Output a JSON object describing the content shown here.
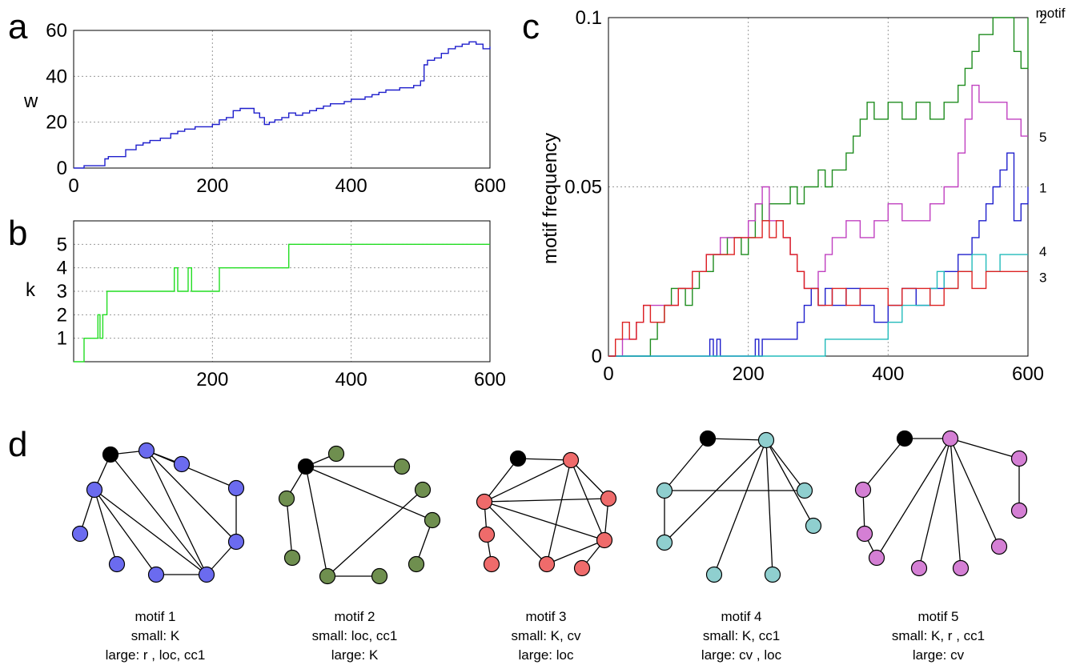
{
  "panel_labels": [
    "a",
    "b",
    "c",
    "d"
  ],
  "chart_data": [
    {
      "id": "a",
      "type": "line",
      "ylabel": "w",
      "xlim": [
        0,
        600
      ],
      "ylim": [
        0,
        60
      ],
      "xticks": [
        0,
        200,
        400,
        600
      ],
      "yticks": [
        0,
        20,
        40,
        60
      ],
      "grid": true,
      "series": [
        {
          "color": "#1f1fcc",
          "x": [
            0,
            15,
            30,
            45,
            50,
            60,
            75,
            90,
            100,
            110,
            125,
            140,
            150,
            160,
            175,
            185,
            200,
            210,
            220,
            230,
            240,
            250,
            260,
            268,
            275,
            282,
            290,
            300,
            310,
            320,
            330,
            340,
            350,
            360,
            370,
            380,
            390,
            400,
            410,
            420,
            430,
            440,
            450,
            460,
            470,
            480,
            490,
            500,
            505,
            510,
            520,
            530,
            540,
            550,
            560,
            570,
            580,
            590,
            600
          ],
          "y": [
            0,
            1,
            1,
            4,
            5,
            5,
            8,
            10,
            11,
            12,
            13,
            15,
            16,
            17,
            18,
            18,
            19,
            21,
            22,
            25,
            26,
            26,
            24,
            22,
            19,
            20,
            21,
            22,
            24,
            23,
            24,
            25,
            26,
            27,
            28,
            28,
            29,
            30,
            30,
            31,
            32,
            33,
            34,
            34,
            35,
            35,
            36,
            38,
            45,
            47,
            48,
            50,
            52,
            53,
            54,
            55,
            54,
            52,
            53
          ]
        }
      ]
    },
    {
      "id": "b",
      "type": "line",
      "ylabel": "k",
      "xlim": [
        0,
        600
      ],
      "ylim": [
        0,
        6
      ],
      "xticks": [
        200,
        400,
        600
      ],
      "yticks": [
        1,
        2,
        3,
        4,
        5
      ],
      "grid": true,
      "series": [
        {
          "color": "#22dd22",
          "x": [
            0,
            15,
            15,
            35,
            35,
            38,
            38,
            42,
            42,
            48,
            48,
            145,
            145,
            150,
            150,
            165,
            165,
            170,
            170,
            175,
            175,
            210,
            210,
            310,
            310,
            600
          ],
          "y": [
            0,
            0,
            1,
            1,
            2,
            2,
            1,
            1,
            2,
            2,
            3,
            3,
            4,
            4,
            3,
            3,
            4,
            4,
            3,
            3,
            3,
            3,
            4,
            4,
            5,
            5
          ]
        }
      ]
    },
    {
      "id": "c",
      "type": "line",
      "ylabel": "motif frequency",
      "legend_title": "motif",
      "xlim": [
        0,
        600
      ],
      "ylim": [
        0,
        0.1
      ],
      "xticks": [
        0,
        200,
        400,
        600
      ],
      "ytick_labels": [
        "0",
        "0.05",
        "0.1"
      ],
      "yticks": [
        0,
        0.05,
        0.1
      ],
      "grid": true,
      "series": [
        {
          "name": "2",
          "color": "#1e8c1e",
          "x": [
            0,
            50,
            60,
            70,
            80,
            90,
            100,
            110,
            120,
            130,
            140,
            150,
            160,
            170,
            180,
            190,
            200,
            210,
            220,
            230,
            240,
            250,
            260,
            270,
            280,
            290,
            300,
            310,
            320,
            330,
            340,
            350,
            360,
            370,
            380,
            400,
            420,
            440,
            460,
            480,
            500,
            510,
            520,
            530,
            540,
            550,
            560,
            570,
            580,
            590,
            600
          ],
          "y": [
            0,
            0,
            0.005,
            0.01,
            0.015,
            0.02,
            0.02,
            0.015,
            0.02,
            0.025,
            0.025,
            0.03,
            0.03,
            0.035,
            0.035,
            0.03,
            0.035,
            0.045,
            0.04,
            0.045,
            0.045,
            0.045,
            0.05,
            0.045,
            0.05,
            0.05,
            0.055,
            0.05,
            0.055,
            0.055,
            0.06,
            0.065,
            0.07,
            0.075,
            0.07,
            0.075,
            0.07,
            0.075,
            0.07,
            0.075,
            0.08,
            0.085,
            0.09,
            0.095,
            0.095,
            0.1,
            0.1,
            0.1,
            0.09,
            0.085,
            0.1
          ]
        },
        {
          "name": "5",
          "color": "#c040c0",
          "x": [
            0,
            20,
            30,
            40,
            50,
            60,
            80,
            100,
            120,
            140,
            160,
            180,
            200,
            210,
            220,
            230,
            250,
            260,
            270,
            280,
            290,
            300,
            310,
            320,
            340,
            360,
            380,
            400,
            420,
            440,
            460,
            480,
            500,
            510,
            520,
            530,
            540,
            550,
            560,
            570,
            580,
            590,
            600
          ],
          "y": [
            0,
            0.005,
            0.005,
            0.01,
            0.015,
            0.015,
            0.015,
            0.02,
            0.025,
            0.03,
            0.035,
            0.035,
            0.04,
            0.045,
            0.05,
            0.04,
            0.035,
            0.03,
            0.025,
            0.02,
            0.02,
            0.025,
            0.03,
            0.035,
            0.04,
            0.035,
            0.04,
            0.045,
            0.04,
            0.04,
            0.045,
            0.05,
            0.06,
            0.07,
            0.08,
            0.075,
            0.075,
            0.075,
            0.075,
            0.07,
            0.07,
            0.065,
            0.065
          ]
        },
        {
          "name": "1",
          "color": "#1f1fcc",
          "x": [
            0,
            140,
            145,
            150,
            155,
            160,
            200,
            210,
            215,
            220,
            230,
            240,
            260,
            270,
            280,
            290,
            300,
            310,
            320,
            340,
            360,
            380,
            400,
            420,
            440,
            460,
            480,
            500,
            520,
            530,
            540,
            550,
            560,
            570,
            580,
            590,
            600
          ],
          "y": [
            0,
            0,
            0.005,
            0,
            0.005,
            0,
            0,
            0.005,
            0,
            0.005,
            0.005,
            0.005,
            0.005,
            0.01,
            0.015,
            0.02,
            0.015,
            0.02,
            0.015,
            0.02,
            0.015,
            0.01,
            0.015,
            0.02,
            0.015,
            0.02,
            0.025,
            0.03,
            0.035,
            0.04,
            0.045,
            0.05,
            0.055,
            0.06,
            0.04,
            0.045,
            0.05
          ]
        },
        {
          "name": "4",
          "color": "#22bbbb",
          "x": [
            0,
            200,
            210,
            220,
            260,
            300,
            310,
            360,
            370,
            390,
            400,
            420,
            460,
            470,
            480,
            500,
            520,
            540,
            560,
            580,
            600
          ],
          "y": [
            0,
            0,
            0,
            0,
            0,
            0,
            0.005,
            0.005,
            0.005,
            0.005,
            0.01,
            0.015,
            0.02,
            0.025,
            0.02,
            0.025,
            0.03,
            0.025,
            0.03,
            0.03,
            0.03
          ]
        },
        {
          "name": "3",
          "color": "#dd2222",
          "x": [
            0,
            10,
            20,
            30,
            40,
            50,
            60,
            80,
            100,
            120,
            140,
            160,
            180,
            200,
            210,
            220,
            230,
            240,
            250,
            260,
            270,
            280,
            300,
            320,
            340,
            360,
            380,
            400,
            420,
            440,
            460,
            480,
            500,
            520,
            540,
            560,
            580,
            600
          ],
          "y": [
            0,
            0.005,
            0.01,
            0.005,
            0.01,
            0.015,
            0.01,
            0.015,
            0.02,
            0.025,
            0.03,
            0.03,
            0.035,
            0.035,
            0.035,
            0.04,
            0.035,
            0.04,
            0.035,
            0.03,
            0.025,
            0.02,
            0.015,
            0.02,
            0.015,
            0.02,
            0.02,
            0.015,
            0.02,
            0.02,
            0.015,
            0.02,
            0.025,
            0.02,
            0.025,
            0.025,
            0.025,
            0.025
          ]
        }
      ]
    }
  ],
  "motifs": [
    {
      "title": "motif 1",
      "small": "small: K",
      "large": "large: r , loc, cc1",
      "color": "#6b6bef"
    },
    {
      "title": "motif 2",
      "small": "small: loc, cc1",
      "large": "large: K",
      "color": "#6f8f4f"
    },
    {
      "title": "motif 3",
      "small": "small: K, cv",
      "large": "large: loc",
      "color": "#ef6b6b"
    },
    {
      "title": "motif 4",
      "small": "small: K, cc1",
      "large": "large: cv , loc",
      "color": "#8fcfcf"
    },
    {
      "title": "motif 5",
      "small": "small: K, r   , cc1",
      "large": "large: cv",
      "color": "#d47fd4"
    }
  ]
}
